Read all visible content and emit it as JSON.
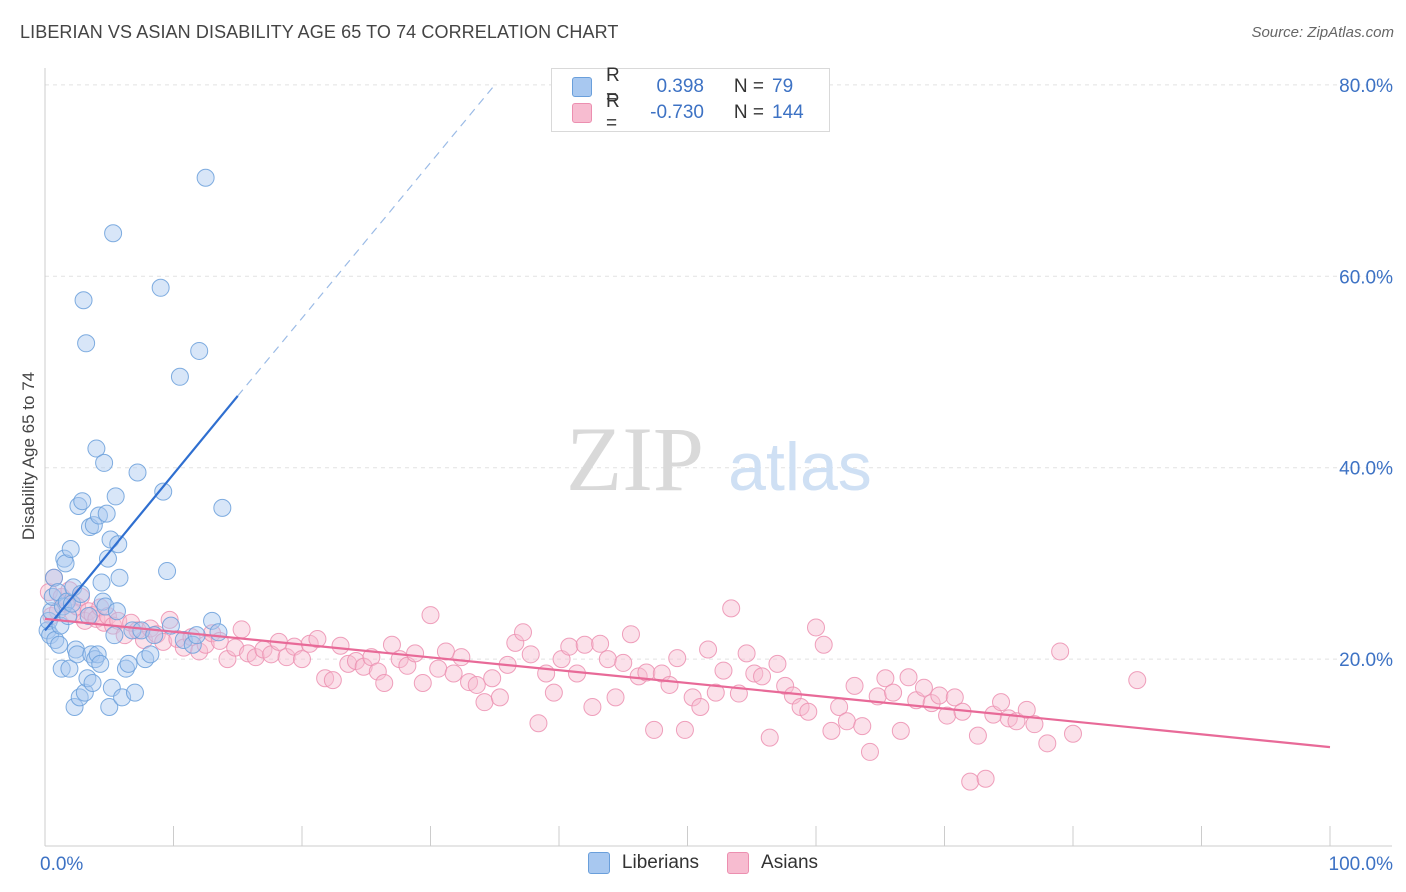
{
  "header": {
    "title": "LIBERIAN VS ASIAN DISABILITY AGE 65 TO 74 CORRELATION CHART",
    "source": "Source: ZipAtlas.com"
  },
  "watermark": {
    "zip": "ZIP",
    "atlas": "atlas"
  },
  "legend": {
    "rows": [
      {
        "r_label": "R =",
        "r_value": "0.398",
        "n_label": "N =",
        "n_value": "79",
        "color": "#7aaee8"
      },
      {
        "r_label": "R =",
        "r_value": "-0.730",
        "n_label": "N =",
        "n_value": "144",
        "color": "#f2a0bd"
      }
    ]
  },
  "colors": {
    "liberians_fill": "#a8c8f0",
    "liberians_stroke": "#6a9fdb",
    "liberians_line": "#2f6fd0",
    "asians_fill": "#f7bcd0",
    "asians_stroke": "#ec8fb0",
    "asians_line": "#e86a98",
    "axis_text": "#3d72c4"
  },
  "chart_data": {
    "type": "scatter",
    "ylabel": "Disability Age 65 to 74",
    "x_tick_labels": [
      "0.0%",
      "100.0%"
    ],
    "y_tick_labels": [
      "20.0%",
      "40.0%",
      "60.0%",
      "80.0%"
    ],
    "y_ticks": [
      20,
      40,
      60,
      80
    ],
    "xlim": [
      0,
      100
    ],
    "ylim": [
      0,
      82
    ],
    "grid": true,
    "legend_position": "bottom",
    "series": [
      {
        "name": "Liberians",
        "trend": {
          "x": [
            0,
            15
          ],
          "y": [
            23.0,
            47.5
          ],
          "dashed_to": [
            35,
            80
          ]
        },
        "points": [
          [
            0.2,
            23.0
          ],
          [
            0.3,
            24.0
          ],
          [
            0.4,
            22.5
          ],
          [
            0.5,
            25.0
          ],
          [
            0.6,
            26.5
          ],
          [
            0.7,
            28.5
          ],
          [
            0.8,
            22.0
          ],
          [
            1.0,
            27.0
          ],
          [
            1.1,
            21.5
          ],
          [
            1.2,
            23.5
          ],
          [
            1.3,
            19.0
          ],
          [
            1.4,
            25.5
          ],
          [
            1.5,
            30.5
          ],
          [
            1.6,
            30.0
          ],
          [
            1.7,
            26.0
          ],
          [
            1.8,
            24.5
          ],
          [
            1.9,
            19.0
          ],
          [
            2.0,
            31.5
          ],
          [
            2.1,
            25.8
          ],
          [
            2.2,
            27.5
          ],
          [
            2.3,
            15.0
          ],
          [
            2.4,
            21.0
          ],
          [
            2.5,
            20.5
          ],
          [
            2.6,
            36.0
          ],
          [
            2.7,
            16.0
          ],
          [
            2.8,
            26.8
          ],
          [
            2.9,
            36.5
          ],
          [
            3.0,
            57.5
          ],
          [
            3.1,
            16.5
          ],
          [
            3.2,
            53.0
          ],
          [
            3.3,
            18.0
          ],
          [
            3.4,
            24.5
          ],
          [
            3.5,
            33.8
          ],
          [
            3.6,
            20.5
          ],
          [
            3.7,
            17.5
          ],
          [
            3.8,
            34.0
          ],
          [
            3.9,
            20.0
          ],
          [
            4.0,
            42.0
          ],
          [
            4.1,
            20.5
          ],
          [
            4.2,
            35.0
          ],
          [
            4.3,
            19.5
          ],
          [
            4.4,
            28.0
          ],
          [
            4.5,
            26.0
          ],
          [
            4.6,
            40.5
          ],
          [
            4.7,
            25.5
          ],
          [
            4.8,
            35.2
          ],
          [
            4.9,
            30.5
          ],
          [
            5.0,
            15.0
          ],
          [
            5.1,
            32.5
          ],
          [
            5.2,
            17.0
          ],
          [
            5.3,
            64.5
          ],
          [
            5.4,
            22.5
          ],
          [
            5.5,
            37.0
          ],
          [
            5.6,
            25.0
          ],
          [
            5.7,
            32.0
          ],
          [
            5.8,
            28.5
          ],
          [
            6.0,
            16.0
          ],
          [
            6.3,
            19.0
          ],
          [
            6.5,
            19.5
          ],
          [
            6.8,
            23.0
          ],
          [
            7.0,
            16.5
          ],
          [
            7.2,
            39.5
          ],
          [
            7.5,
            23.0
          ],
          [
            7.8,
            20.0
          ],
          [
            8.2,
            20.5
          ],
          [
            8.5,
            22.5
          ],
          [
            9.0,
            58.8
          ],
          [
            9.2,
            37.5
          ],
          [
            9.5,
            29.2
          ],
          [
            9.8,
            23.5
          ],
          [
            10.5,
            49.5
          ],
          [
            10.8,
            22.0
          ],
          [
            11.5,
            21.5
          ],
          [
            11.8,
            22.5
          ],
          [
            12.0,
            52.2
          ],
          [
            12.5,
            70.3
          ],
          [
            13.0,
            24.0
          ],
          [
            13.5,
            22.8
          ],
          [
            13.8,
            35.8
          ]
        ]
      },
      {
        "name": "Asians",
        "trend": {
          "x": [
            0,
            100
          ],
          "y": [
            24.2,
            10.8
          ]
        },
        "points": [
          [
            0.3,
            27.0
          ],
          [
            0.5,
            24.5
          ],
          [
            0.7,
            28.5
          ],
          [
            1.0,
            25.0
          ],
          [
            1.3,
            26.5
          ],
          [
            1.6,
            25.8
          ],
          [
            1.9,
            27.2
          ],
          [
            2.2,
            24.8
          ],
          [
            2.5,
            25.5
          ],
          [
            2.8,
            26.5
          ],
          [
            3.1,
            24.0
          ],
          [
            3.4,
            25.0
          ],
          [
            3.7,
            24.6
          ],
          [
            4.0,
            24.2
          ],
          [
            4.3,
            25.4
          ],
          [
            4.6,
            23.8
          ],
          [
            4.9,
            24.5
          ],
          [
            5.3,
            23.5
          ],
          [
            5.7,
            24.0
          ],
          [
            6.2,
            22.5
          ],
          [
            6.7,
            23.8
          ],
          [
            7.2,
            23.0
          ],
          [
            7.7,
            22.0
          ],
          [
            8.2,
            23.2
          ],
          [
            8.7,
            22.6
          ],
          [
            9.2,
            21.8
          ],
          [
            9.7,
            24.1
          ],
          [
            10.3,
            22.1
          ],
          [
            10.8,
            21.2
          ],
          [
            11.4,
            22.3
          ],
          [
            12.0,
            20.8
          ],
          [
            12.5,
            21.5
          ],
          [
            13.0,
            22.7
          ],
          [
            13.6,
            21.9
          ],
          [
            14.2,
            20.0
          ],
          [
            14.8,
            21.2
          ],
          [
            15.3,
            23.1
          ],
          [
            15.8,
            20.6
          ],
          [
            16.4,
            20.2
          ],
          [
            17.0,
            21.0
          ],
          [
            17.6,
            20.5
          ],
          [
            18.2,
            21.8
          ],
          [
            18.8,
            20.2
          ],
          [
            19.4,
            21.3
          ],
          [
            20.0,
            20.0
          ],
          [
            20.6,
            21.6
          ],
          [
            21.2,
            22.1
          ],
          [
            21.8,
            18.0
          ],
          [
            22.4,
            17.8
          ],
          [
            23.0,
            21.4
          ],
          [
            23.6,
            19.5
          ],
          [
            24.2,
            19.8
          ],
          [
            24.8,
            19.2
          ],
          [
            25.4,
            20.2
          ],
          [
            25.9,
            18.7
          ],
          [
            26.4,
            17.5
          ],
          [
            27.0,
            21.5
          ],
          [
            27.6,
            20.0
          ],
          [
            28.2,
            19.3
          ],
          [
            28.8,
            20.6
          ],
          [
            29.4,
            17.5
          ],
          [
            30.0,
            24.6
          ],
          [
            30.6,
            19.0
          ],
          [
            31.2,
            20.8
          ],
          [
            31.8,
            18.5
          ],
          [
            32.4,
            20.2
          ],
          [
            33.0,
            17.6
          ],
          [
            33.6,
            17.3
          ],
          [
            34.2,
            15.5
          ],
          [
            34.8,
            18.0
          ],
          [
            35.4,
            16.0
          ],
          [
            36.0,
            19.4
          ],
          [
            36.6,
            21.7
          ],
          [
            37.2,
            22.8
          ],
          [
            37.8,
            20.5
          ],
          [
            38.4,
            13.3
          ],
          [
            39.0,
            18.5
          ],
          [
            39.6,
            16.5
          ],
          [
            40.2,
            20.0
          ],
          [
            40.8,
            21.3
          ],
          [
            41.4,
            18.5
          ],
          [
            42.0,
            21.5
          ],
          [
            42.6,
            15.0
          ],
          [
            43.2,
            21.6
          ],
          [
            43.8,
            20.0
          ],
          [
            44.4,
            16.0
          ],
          [
            45.0,
            19.6
          ],
          [
            45.6,
            22.6
          ],
          [
            46.2,
            18.2
          ],
          [
            46.8,
            18.6
          ],
          [
            47.4,
            12.6
          ],
          [
            48.0,
            18.5
          ],
          [
            48.6,
            17.3
          ],
          [
            49.2,
            20.1
          ],
          [
            49.8,
            12.6
          ],
          [
            50.4,
            16.0
          ],
          [
            51.0,
            15.0
          ],
          [
            51.6,
            21.0
          ],
          [
            52.2,
            16.5
          ],
          [
            52.8,
            18.8
          ],
          [
            53.4,
            25.3
          ],
          [
            54.0,
            16.4
          ],
          [
            54.6,
            20.6
          ],
          [
            55.2,
            18.5
          ],
          [
            55.8,
            18.2
          ],
          [
            56.4,
            11.8
          ],
          [
            57.0,
            19.5
          ],
          [
            57.6,
            17.2
          ],
          [
            58.2,
            16.2
          ],
          [
            58.8,
            15.0
          ],
          [
            59.4,
            14.5
          ],
          [
            60.0,
            23.3
          ],
          [
            60.6,
            21.5
          ],
          [
            61.2,
            12.5
          ],
          [
            61.8,
            15.0
          ],
          [
            62.4,
            13.5
          ],
          [
            63.0,
            17.2
          ],
          [
            63.6,
            13.0
          ],
          [
            64.2,
            10.3
          ],
          [
            64.8,
            16.1
          ],
          [
            65.4,
            18.0
          ],
          [
            66.0,
            16.5
          ],
          [
            66.6,
            12.5
          ],
          [
            67.2,
            18.1
          ],
          [
            67.8,
            15.7
          ],
          [
            68.4,
            17.0
          ],
          [
            69.0,
            15.4
          ],
          [
            69.6,
            16.2
          ],
          [
            70.2,
            14.1
          ],
          [
            70.8,
            16.0
          ],
          [
            71.4,
            14.5
          ],
          [
            72.0,
            7.2
          ],
          [
            72.6,
            12.0
          ],
          [
            73.2,
            7.5
          ],
          [
            73.8,
            14.2
          ],
          [
            74.4,
            15.5
          ],
          [
            75.0,
            13.8
          ],
          [
            75.6,
            13.5
          ],
          [
            76.4,
            14.7
          ],
          [
            77.0,
            13.2
          ],
          [
            78.0,
            11.2
          ],
          [
            79.0,
            20.8
          ],
          [
            80.0,
            12.2
          ],
          [
            85.0,
            17.8
          ]
        ]
      }
    ]
  }
}
